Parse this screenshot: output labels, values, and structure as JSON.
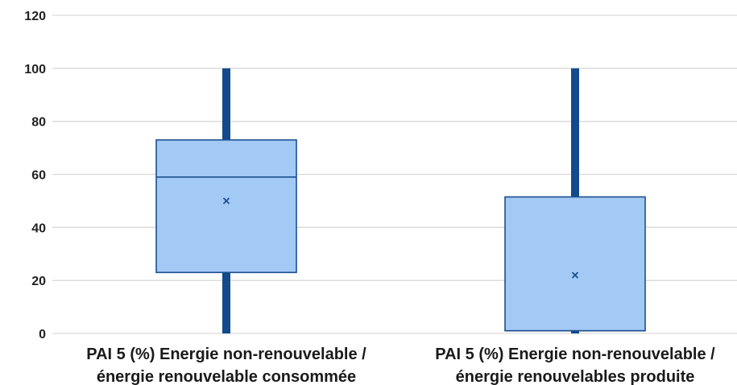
{
  "chart_data": {
    "type": "box",
    "ylim": [
      0,
      120
    ],
    "y_ticks": [
      0,
      20,
      40,
      60,
      80,
      100,
      120
    ],
    "grid": true,
    "colors": {
      "box_fill": "#a3c9f5",
      "box_stroke": "#1b4f8f",
      "whisker": "#124a8c",
      "grid": "#d9d9d9",
      "mean_marker": "#1b4f8f"
    },
    "categories": [
      [
        "PAI 5 (%) Energie non-renouvelable /",
        "énergie renouvelable consommée"
      ],
      [
        "PAI 5 (%) Energie non-renouvelable /",
        "énergie renouvelables produite"
      ]
    ],
    "boxes": [
      {
        "min": 0,
        "q1": 23,
        "median": 59,
        "q3": 73,
        "max": 100,
        "mean": 50
      },
      {
        "min": 0,
        "q1": 1,
        "median": 1,
        "q3": 51.5,
        "max": 100,
        "mean": 22
      }
    ]
  }
}
